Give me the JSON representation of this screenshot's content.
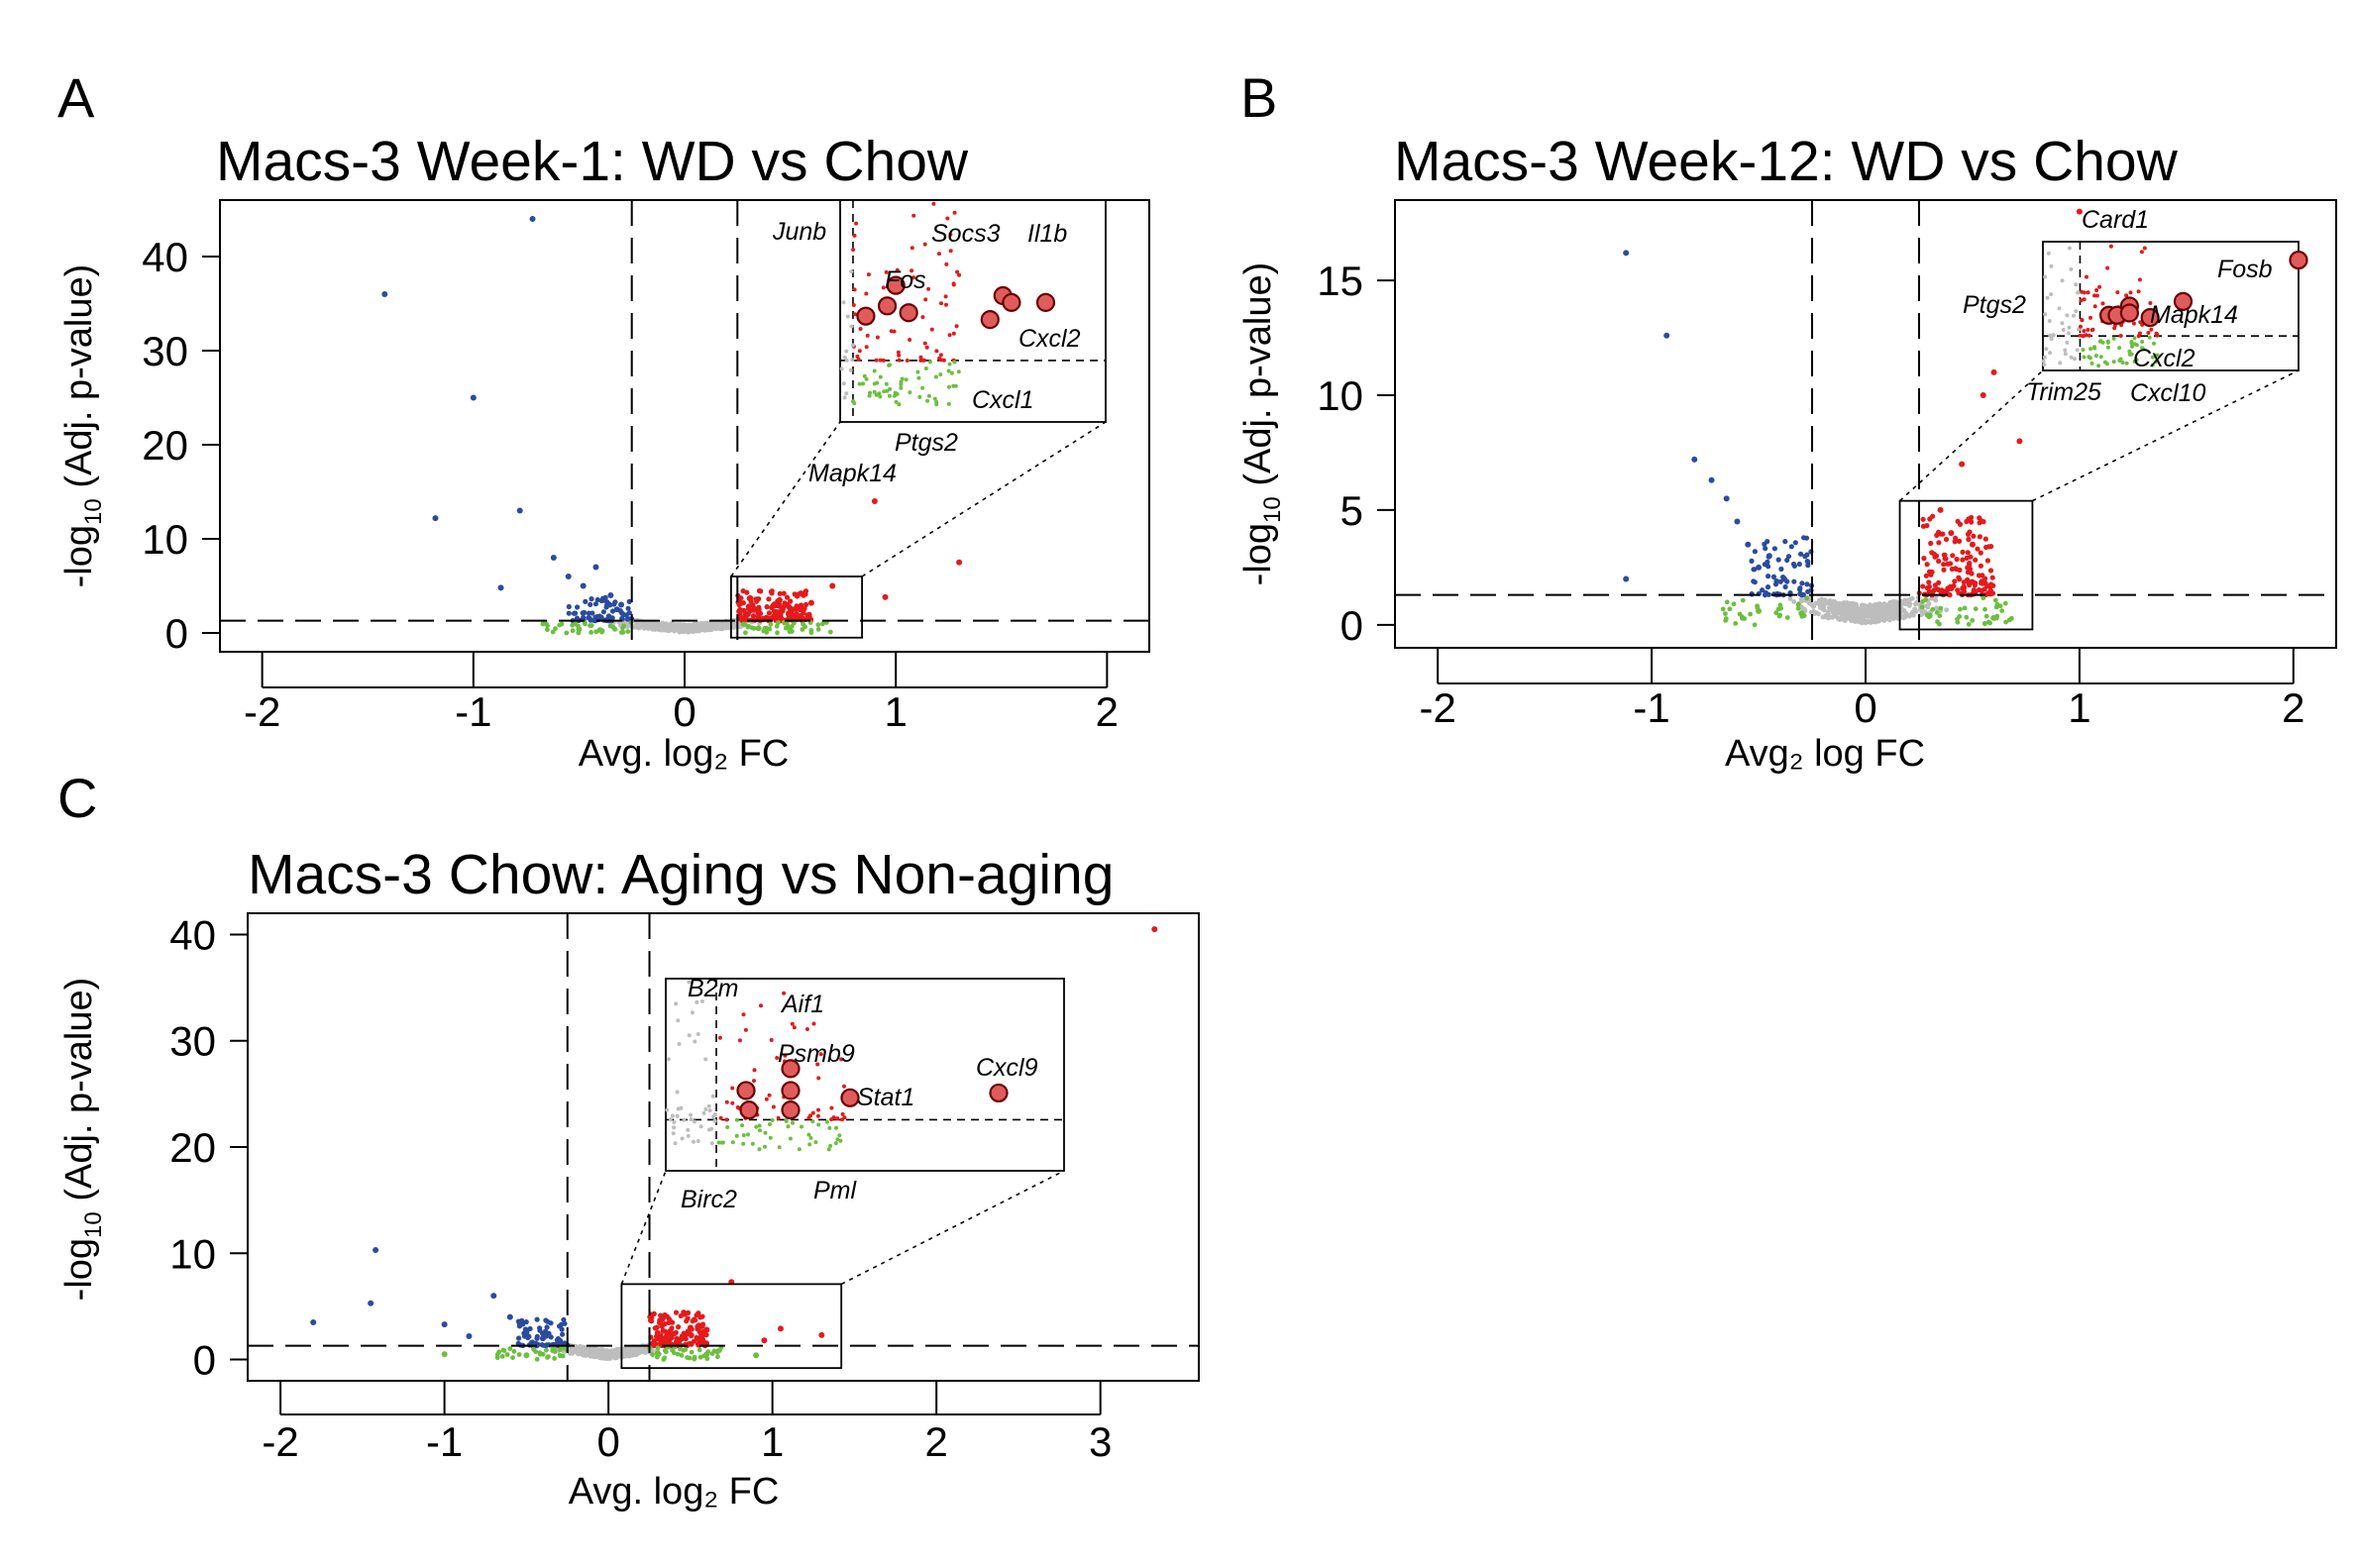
{
  "figure": {
    "panels": [
      {
        "letter": "A",
        "title": "Macs-3 Week-1: WD vs Chow",
        "xlabel": "Avg. log₂ FC",
        "ylabel_prefix": "-log",
        "ylabel_sub": "10",
        "ylabel_suffix": " (Adj. p-value)"
      },
      {
        "letter": "B",
        "title": "Macs-3 Week-12: WD vs Chow",
        "xlabel": "Avg₂ log FC",
        "ylabel_prefix": "-log",
        "ylabel_sub": "10",
        "ylabel_suffix": " (Adj. p-value)"
      },
      {
        "letter": "C",
        "title": "Macs-3 Chow: Aging vs Non-aging",
        "xlabel": "Avg. log₂ FC",
        "ylabel_prefix": "-log",
        "ylabel_sub": "10",
        "ylabel_suffix": " (Adj. p-value)"
      }
    ]
  },
  "colors": {
    "down": "#2b4ba0",
    "up": "#e41a1c",
    "fc_only": "#6cbf3f",
    "ns": "#bdbdbd",
    "highlight_fill": "#e05c5c",
    "highlight_stroke": "#6b0000",
    "axis": "#000000"
  },
  "chart_data": [
    {
      "type": "scatter",
      "title": "Macs-3 Week-1: WD vs Chow",
      "xlabel": "Avg. log₂ FC",
      "ylabel": "-log10 (Adj. p-value)",
      "xlim": [
        -2.2,
        2.2
      ],
      "ylim": [
        -2,
        46
      ],
      "xticks": [
        -2,
        -1,
        0,
        1,
        2
      ],
      "xtick_labels": [
        "-2",
        "-1",
        "0",
        "1",
        "2"
      ],
      "yticks": [
        0,
        10,
        20,
        30,
        40
      ],
      "ytick_labels": [
        "0",
        "10",
        "20",
        "30",
        "40"
      ],
      "fc_threshold": 0.25,
      "p_threshold": 1.3,
      "grid": false,
      "series_points": {
        "down": [
          [
            -0.72,
            44
          ],
          [
            -1.42,
            36
          ],
          [
            -1.0,
            25
          ],
          [
            -1.18,
            12.2
          ],
          [
            -0.87,
            4.8
          ],
          [
            -0.78,
            13
          ],
          [
            -0.62,
            8
          ],
          [
            -0.55,
            6
          ],
          [
            -0.48,
            5
          ],
          [
            -0.42,
            7
          ],
          [
            -0.38,
            3.5
          ],
          [
            -0.35,
            4
          ],
          [
            -0.32,
            2.5
          ],
          [
            -0.3,
            3
          ]
        ],
        "up": [
          [
            0.9,
            14
          ],
          [
            1.3,
            7.5
          ],
          [
            0.95,
            3.8
          ],
          [
            0.7,
            5
          ],
          [
            0.6,
            3.2
          ],
          [
            0.5,
            2.6
          ],
          [
            0.45,
            3.5
          ],
          [
            0.3,
            2
          ],
          [
            0.35,
            2.3
          ],
          [
            0.42,
            2.9
          ],
          [
            0.55,
            4.2
          ]
        ],
        "fc_only": [
          [
            -0.5,
            0.4
          ],
          [
            -0.4,
            0.3
          ],
          [
            0.35,
            0.5
          ],
          [
            0.5,
            0.3
          ]
        ]
      },
      "zoom_box": {
        "x": [
          0.22,
          0.84
        ],
        "y": [
          -0.5,
          6
        ]
      },
      "highlighted_genes": [
        {
          "gene": "Junb",
          "x": 0.35,
          "y": 3.5
        },
        {
          "gene": "Fos",
          "x": 0.33,
          "y": 2.9
        },
        {
          "gene": "Socs3",
          "x": 0.6,
          "y": 3.2
        },
        {
          "gene": "Il1b",
          "x": 0.62,
          "y": 3.0
        },
        {
          "gene": "Cxcl2",
          "x": 0.7,
          "y": 3.0
        },
        {
          "gene": "Cxcl1",
          "x": 0.57,
          "y": 2.5
        },
        {
          "gene": "Ptgs2",
          "x": 0.38,
          "y": 2.7
        },
        {
          "gene": "Mapk14",
          "x": 0.28,
          "y": 2.6
        }
      ]
    },
    {
      "type": "scatter",
      "title": "Macs-3 Week-12: WD vs Chow",
      "xlabel": "Avg₂ log FC",
      "ylabel": "-log10 (Adj. p-value)",
      "xlim": [
        -2.2,
        2.2
      ],
      "ylim": [
        -1,
        18.5
      ],
      "xticks": [
        -2,
        -1,
        0,
        1,
        2
      ],
      "xtick_labels": [
        "-2",
        "-1",
        "0",
        "1",
        "2"
      ],
      "yticks": [
        0,
        5,
        10,
        15
      ],
      "ytick_labels": [
        "0",
        "5",
        "10",
        "15"
      ],
      "fc_threshold": 0.25,
      "p_threshold": 1.3,
      "grid": false,
      "series_points": {
        "down": [
          [
            -1.12,
            16.2
          ],
          [
            -0.93,
            12.6
          ],
          [
            -0.8,
            7.2
          ],
          [
            -0.72,
            6.3
          ],
          [
            -0.65,
            5.5
          ],
          [
            -0.55,
            3.5
          ],
          [
            -0.5,
            2.5
          ],
          [
            -0.45,
            3
          ],
          [
            -0.38,
            2
          ],
          [
            -1.12,
            2.0
          ],
          [
            -0.6,
            4.5
          ]
        ],
        "up": [
          [
            1.0,
            18.0
          ],
          [
            0.6,
            11.0
          ],
          [
            0.55,
            10.0
          ],
          [
            0.72,
            8.0
          ],
          [
            0.45,
            7.0
          ],
          [
            0.35,
            5.0
          ],
          [
            0.4,
            4.0
          ],
          [
            0.5,
            3.5
          ]
        ],
        "fc_only": [
          [
            -0.5,
            0.6
          ],
          [
            -0.3,
            0.5
          ],
          [
            0.3,
            0.4
          ],
          [
            0.6,
            0.3
          ]
        ]
      },
      "zoom_box": {
        "x": [
          0.16,
          0.78
        ],
        "y": [
          -0.2,
          5.4
        ]
      },
      "highlighted_genes": [
        {
          "gene": "Card1",
          "x": 0.37,
          "y": 2.6
        },
        {
          "gene": "Fosb",
          "x": 0.78,
          "y": 4.6
        },
        {
          "gene": "Mapk14",
          "x": 0.5,
          "y": 2.8
        },
        {
          "gene": "Ptgs2",
          "x": 0.32,
          "y": 2.2
        },
        {
          "gene": "Cxcl2",
          "x": 0.42,
          "y": 2.1
        },
        {
          "gene": "Trim25",
          "x": 0.34,
          "y": 2.2
        },
        {
          "gene": "Cxcl10",
          "x": 0.37,
          "y": 2.3
        }
      ]
    },
    {
      "type": "scatter",
      "title": "Macs-3 Chow: Aging vs Non-aging",
      "xlabel": "Avg. log₂ FC",
      "ylabel": "-log10 (Adj. p-value)",
      "xlim": [
        -2.2,
        3.6
      ],
      "ylim": [
        -2,
        42
      ],
      "xticks": [
        -2,
        -1,
        0,
        1,
        2,
        3
      ],
      "xtick_labels": [
        "-2",
        "-1",
        "0",
        "1",
        "2",
        "3"
      ],
      "yticks": [
        0,
        10,
        20,
        30,
        40
      ],
      "ytick_labels": [
        "0",
        "10",
        "20",
        "30",
        "40"
      ],
      "fc_threshold": 0.25,
      "p_threshold": 1.3,
      "grid": false,
      "series_points": {
        "down": [
          [
            -1.42,
            10.3
          ],
          [
            -1.45,
            5.3
          ],
          [
            -1.8,
            3.5
          ],
          [
            -1.0,
            3.3
          ],
          [
            -0.85,
            2.2
          ],
          [
            -0.7,
            6
          ],
          [
            -0.6,
            4
          ],
          [
            -0.5,
            2.5
          ],
          [
            -0.4,
            2
          ],
          [
            -0.3,
            1.8
          ]
        ],
        "up": [
          [
            3.33,
            40.5
          ],
          [
            0.75,
            7.3
          ],
          [
            1.3,
            2.3
          ],
          [
            1.05,
            2.9
          ],
          [
            0.95,
            1.8
          ],
          [
            0.5,
            3.0
          ],
          [
            0.45,
            2.0
          ],
          [
            0.6,
            2.8
          ],
          [
            0.35,
            1.9
          ],
          [
            0.3,
            2.5
          ]
        ],
        "fc_only": [
          [
            -1.0,
            0.5
          ],
          [
            -0.5,
            0.4
          ],
          [
            0.3,
            0.6
          ],
          [
            0.6,
            0.5
          ],
          [
            0.9,
            0.4
          ]
        ]
      },
      "zoom_box": {
        "x": [
          0.08,
          1.42
        ],
        "y": [
          -0.8,
          7.1
        ]
      },
      "highlighted_genes": [
        {
          "gene": "B2m",
          "x": 0.35,
          "y": 2.5
        },
        {
          "gene": "Aif1",
          "x": 0.5,
          "y": 3.4
        },
        {
          "gene": "Psmb9",
          "x": 0.5,
          "y": 2.5
        },
        {
          "gene": "Stat1",
          "x": 0.7,
          "y": 2.2
        },
        {
          "gene": "Cxcl9",
          "x": 1.2,
          "y": 2.4
        },
        {
          "gene": "Birc2",
          "x": 0.36,
          "y": 1.7
        },
        {
          "gene": "Pml",
          "x": 0.5,
          "y": 1.7
        }
      ]
    }
  ]
}
